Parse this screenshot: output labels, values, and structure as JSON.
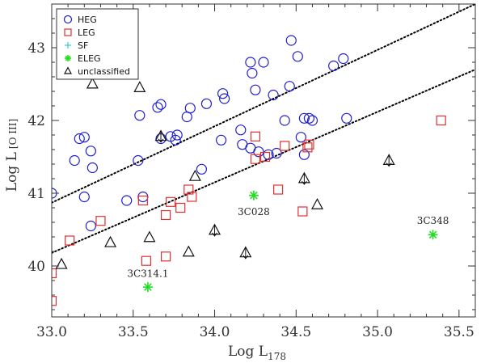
{
  "chart_data": {
    "type": "scatter",
    "xlabel": "Log L",
    "xlabel_sub": "178",
    "ylabel": "Log L",
    "ylabel_sub": "[O III]",
    "xlim": [
      33.0,
      35.6
    ],
    "ylim": [
      39.3,
      43.6
    ],
    "xticks": [
      33.0,
      33.5,
      34.0,
      34.5,
      35.0,
      35.5
    ],
    "xtick_labels": [
      "33.0",
      "33.5",
      "34.0",
      "34.5",
      "35.0",
      "35.5"
    ],
    "yticks": [
      40,
      41,
      42,
      43
    ],
    "ytick_labels": [
      "40",
      "41",
      "42",
      "43"
    ],
    "colors": {
      "HEG": "#1f1fd0",
      "LEG": "#e03030",
      "SF": "#33cccc",
      "ELEG": "#22dd22",
      "unclassified": "#111111",
      "fit": "#000000"
    },
    "series": [
      {
        "name": "HEG",
        "marker": "circle",
        "points": [
          [
            33.0,
            41.0
          ],
          [
            33.14,
            41.45
          ],
          [
            33.17,
            41.75
          ],
          [
            33.2,
            41.77
          ],
          [
            33.2,
            40.95
          ],
          [
            33.24,
            41.58
          ],
          [
            33.25,
            41.35
          ],
          [
            33.24,
            40.55
          ],
          [
            33.46,
            40.9
          ],
          [
            33.53,
            41.45
          ],
          [
            33.54,
            42.07
          ],
          [
            33.56,
            40.95
          ],
          [
            33.65,
            42.18
          ],
          [
            33.67,
            42.22
          ],
          [
            33.67,
            41.75
          ],
          [
            33.73,
            41.78
          ],
          [
            33.76,
            41.73
          ],
          [
            33.77,
            41.8
          ],
          [
            33.83,
            42.05
          ],
          [
            33.85,
            42.17
          ],
          [
            33.92,
            41.33
          ],
          [
            33.95,
            42.23
          ],
          [
            34.04,
            41.73
          ],
          [
            34.05,
            42.37
          ],
          [
            34.06,
            42.3
          ],
          [
            34.16,
            41.87
          ],
          [
            34.17,
            41.67
          ],
          [
            34.22,
            41.62
          ],
          [
            34.22,
            42.8
          ],
          [
            34.23,
            42.65
          ],
          [
            34.25,
            42.42
          ],
          [
            34.27,
            41.57
          ],
          [
            34.3,
            42.8
          ],
          [
            34.33,
            41.53
          ],
          [
            34.36,
            42.35
          ],
          [
            34.38,
            41.55
          ],
          [
            34.43,
            42.0
          ],
          [
            34.46,
            42.47
          ],
          [
            34.47,
            43.1
          ],
          [
            34.51,
            42.88
          ],
          [
            34.53,
            41.77
          ],
          [
            34.55,
            41.53
          ],
          [
            34.55,
            42.03
          ],
          [
            34.58,
            42.03
          ],
          [
            34.6,
            42.0
          ],
          [
            34.73,
            42.75
          ],
          [
            34.79,
            42.85
          ],
          [
            34.81,
            42.03
          ]
        ]
      },
      {
        "name": "LEG",
        "marker": "square",
        "points": [
          [
            33.0,
            39.9
          ],
          [
            33.0,
            39.52
          ],
          [
            33.11,
            40.35
          ],
          [
            33.3,
            40.62
          ],
          [
            33.56,
            40.9
          ],
          [
            33.58,
            40.07
          ],
          [
            33.7,
            40.13
          ],
          [
            33.7,
            40.7
          ],
          [
            33.73,
            40.88
          ],
          [
            33.79,
            40.8
          ],
          [
            33.84,
            41.05
          ],
          [
            33.86,
            40.95
          ],
          [
            34.25,
            41.47
          ],
          [
            34.25,
            41.78
          ],
          [
            34.31,
            41.5
          ],
          [
            34.39,
            41.05
          ],
          [
            34.43,
            41.65
          ],
          [
            34.54,
            40.75
          ],
          [
            34.57,
            41.63
          ],
          [
            34.58,
            41.67
          ],
          [
            35.39,
            42.0
          ]
        ]
      },
      {
        "name": "SF",
        "marker": "plus",
        "points": []
      },
      {
        "name": "ELEG",
        "marker": "star",
        "points": [
          [
            33.59,
            39.71
          ],
          [
            34.24,
            40.97
          ],
          [
            35.34,
            40.43
          ]
        ]
      },
      {
        "name": "unclassified",
        "marker": "triangle",
        "points": [
          [
            33.06,
            40.02
          ],
          [
            33.25,
            42.5
          ],
          [
            33.36,
            40.32
          ],
          [
            33.54,
            42.45
          ],
          [
            33.6,
            40.39
          ],
          [
            33.67,
            41.78
          ],
          [
            33.84,
            40.19
          ],
          [
            33.88,
            41.23
          ],
          [
            34.0,
            40.49
          ],
          [
            34.19,
            40.18
          ],
          [
            34.55,
            41.2
          ],
          [
            34.63,
            40.84
          ],
          [
            35.07,
            41.45
          ]
        ]
      }
    ],
    "upper_limit_arrows": [
      [
        33.67,
        41.78
      ],
      [
        34.0,
        40.49
      ],
      [
        34.19,
        40.18
      ],
      [
        34.55,
        41.2
      ],
      [
        35.07,
        41.45
      ]
    ],
    "fit_lines": [
      {
        "name": "upper",
        "x": [
          33.0,
          35.6
        ],
        "y": [
          40.87,
          43.6
        ]
      },
      {
        "name": "lower",
        "x": [
          33.0,
          35.6
        ],
        "y": [
          40.18,
          42.7
        ]
      }
    ],
    "annotations": [
      {
        "text": "3C314.1",
        "x": 33.59,
        "y": 39.85
      },
      {
        "text": "3C028",
        "x": 34.24,
        "y": 40.7
      },
      {
        "text": "3C348",
        "x": 35.34,
        "y": 40.58
      }
    ],
    "legend": {
      "position": "top-left",
      "entries": [
        {
          "label": "HEG",
          "marker": "circle",
          "series": "HEG"
        },
        {
          "label": "LEG",
          "marker": "square",
          "series": "LEG"
        },
        {
          "label": "SF",
          "marker": "plus",
          "series": "SF"
        },
        {
          "label": "ELEG",
          "marker": "star",
          "series": "ELEG"
        },
        {
          "label": "unclassified",
          "marker": "triangle",
          "series": "unclassified"
        }
      ]
    }
  }
}
